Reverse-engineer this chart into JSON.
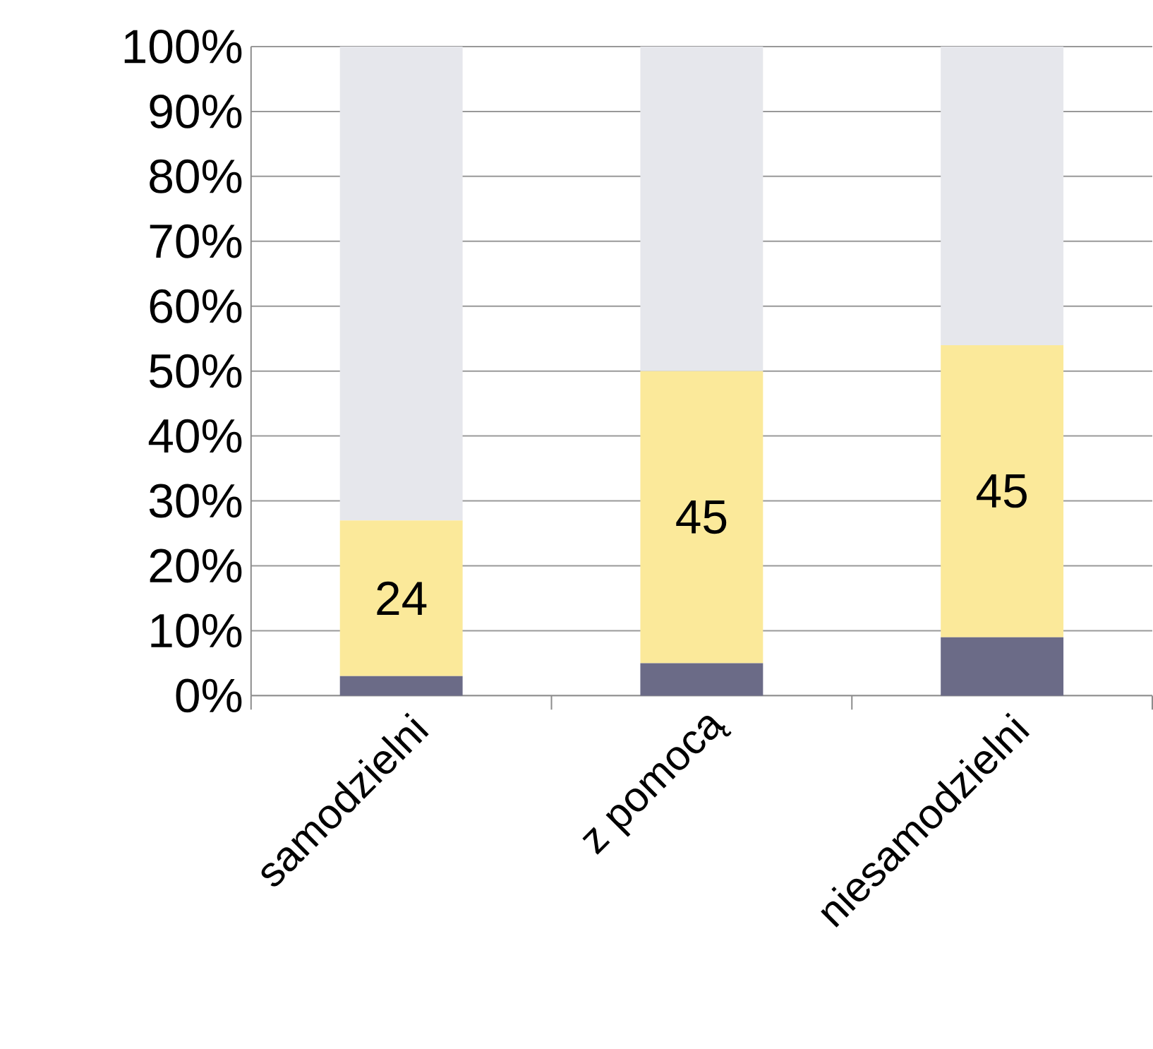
{
  "chart_data": {
    "type": "bar",
    "stacked": true,
    "categories": [
      "samodzielni",
      "z pomocą",
      "niesamodzielni"
    ],
    "series": [
      {
        "color": "#6b6b87",
        "values": [
          3,
          5,
          9
        ]
      },
      {
        "color": "#fbe99a",
        "values": [
          24,
          45,
          45
        ],
        "value_labels": [
          "24",
          "45",
          "45"
        ]
      },
      {
        "color": "#e6e7ec",
        "values": [
          73,
          50,
          46
        ]
      }
    ],
    "ylim": [
      0,
      100
    ],
    "yticks": [
      {
        "value": 0,
        "label": "0%"
      },
      {
        "value": 10,
        "label": "10%"
      },
      {
        "value": 20,
        "label": "20%"
      },
      {
        "value": 30,
        "label": "30%"
      },
      {
        "value": 40,
        "label": "40%"
      },
      {
        "value": 50,
        "label": "50%"
      },
      {
        "value": 60,
        "label": "60%"
      },
      {
        "value": 70,
        "label": "70%"
      },
      {
        "value": 80,
        "label": "80%"
      },
      {
        "value": 90,
        "label": "90%"
      },
      {
        "value": 100,
        "label": "100%"
      }
    ],
    "grid": "y"
  }
}
